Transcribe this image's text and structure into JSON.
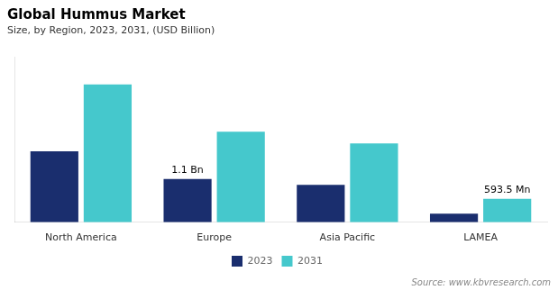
{
  "chart_data": {
    "type": "bar",
    "title": "Global Hummus Market",
    "subtitle": "Size, by Region, 2023, 2031, (USD Billion)",
    "categories": [
      "North America",
      "Europe",
      "Asia Pacific",
      "LAMEA"
    ],
    "series": [
      {
        "name": "2023",
        "color": "#1a2e6e",
        "values": [
          1.8,
          1.1,
          0.95,
          0.22
        ]
      },
      {
        "name": "2031",
        "color": "#45c8cc",
        "values": [
          3.5,
          2.3,
          2.0,
          0.5935
        ]
      }
    ],
    "ylim": [
      0,
      4.2
    ],
    "yticks": [],
    "grid": false,
    "legend": "bottom",
    "tick_labels": "x",
    "annotations": [
      {
        "text": "1.1 Bn",
        "category": "Europe",
        "series": "2023",
        "value": 1.1
      },
      {
        "text": "593.5 Mn",
        "category": "LAMEA",
        "series": "2031",
        "value": 0.5935
      }
    ],
    "source": "Source: www.kbvresearch.com"
  }
}
